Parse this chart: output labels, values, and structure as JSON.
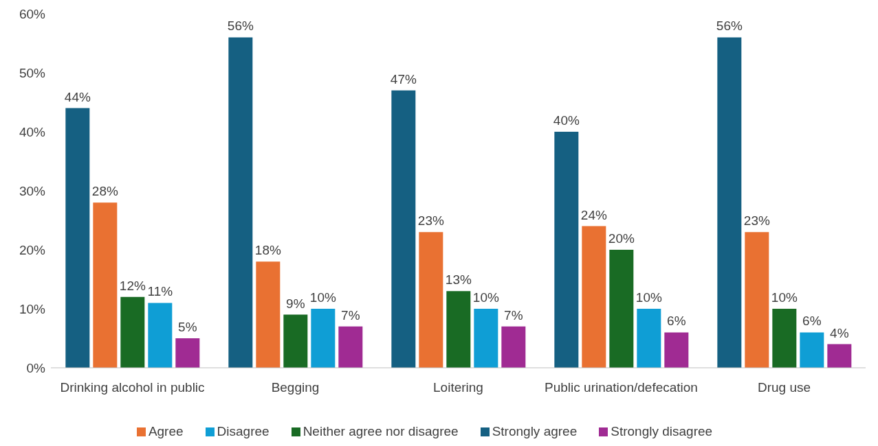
{
  "chart_data": {
    "type": "bar",
    "categories": [
      "Drinking alcohol in public",
      "Begging",
      "Loitering",
      "Public urination/defecation",
      "Drug use"
    ],
    "series": [
      {
        "name": "Strongly agree",
        "color": "#156082",
        "values": [
          44,
          56,
          47,
          40,
          56
        ],
        "value_labels": [
          "44%",
          "56%",
          "47%",
          "40%",
          "56%"
        ]
      },
      {
        "name": "Agree",
        "color": "#e97132",
        "values": [
          28,
          18,
          23,
          24,
          23
        ],
        "value_labels": [
          "28%",
          "18%",
          "23%",
          "24%",
          "23%"
        ]
      },
      {
        "name": "Neither agree nor disagree",
        "color": "#196b24",
        "values": [
          12,
          9,
          13,
          20,
          10
        ],
        "value_labels": [
          "12%",
          "9%",
          "13%",
          "20%",
          "10%"
        ]
      },
      {
        "name": "Disagree",
        "color": "#0f9ed5",
        "values": [
          11,
          10,
          10,
          10,
          6
        ],
        "value_labels": [
          "11%",
          "10%",
          "10%",
          "10%",
          "6%"
        ]
      },
      {
        "name": "Strongly disagree",
        "color": "#a02b93",
        "values": [
          5,
          7,
          7,
          6,
          4
        ],
        "value_labels": [
          "5%",
          "7%",
          "7%",
          "6%",
          "4%"
        ]
      }
    ],
    "ylim": [
      0,
      60
    ],
    "yticks": [
      {
        "value": 0,
        "label": "0%"
      },
      {
        "value": 10,
        "label": "10%"
      },
      {
        "value": 20,
        "label": "20%"
      },
      {
        "value": 30,
        "label": "30%"
      },
      {
        "value": 40,
        "label": "40%"
      },
      {
        "value": 50,
        "label": "50%"
      },
      {
        "value": 60,
        "label": "60%"
      }
    ],
    "grid": false,
    "legend": "bottom"
  }
}
